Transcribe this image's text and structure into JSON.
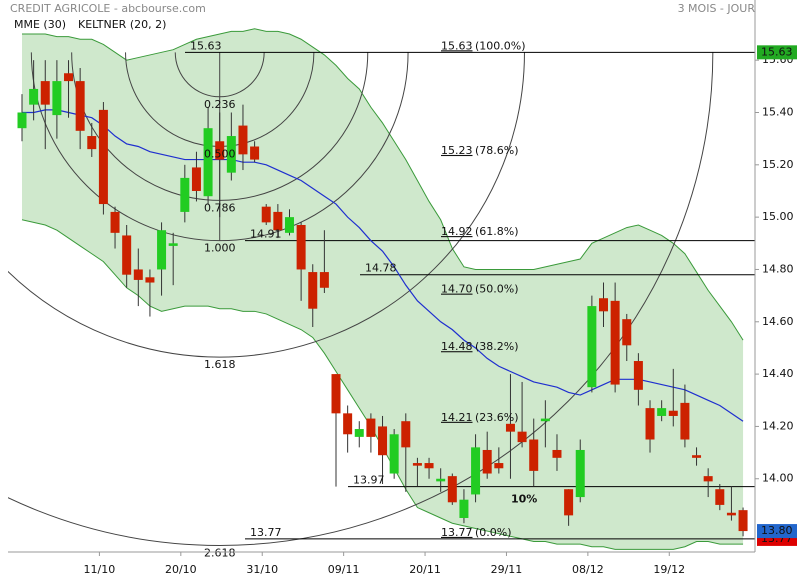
{
  "chart_data": {
    "type": "candlestick",
    "title": "CREDIT AGRICOLE - abcbourse.com",
    "subtitle": "3 MOIS - JOUR",
    "categories": [
      null,
      null,
      null,
      null,
      null,
      null,
      null,
      "11/10",
      null,
      null,
      null,
      null,
      null,
      null,
      "20/10",
      null,
      null,
      null,
      null,
      null,
      null,
      "31/10",
      null,
      null,
      null,
      null,
      null,
      null,
      "09/11",
      null,
      null,
      null,
      null,
      null,
      null,
      "20/11",
      null,
      null,
      null,
      null,
      null,
      null,
      "29/11",
      null,
      null,
      null,
      null,
      null,
      null,
      "08/12",
      null,
      null,
      null,
      null,
      null,
      null,
      "19/12",
      null,
      null,
      null,
      null,
      null,
      null
    ],
    "open": [
      15.34,
      15.43,
      15.52,
      15.39,
      15.55,
      15.52,
      15.31,
      15.41,
      15.02,
      14.93,
      14.8,
      14.77,
      14.8,
      14.89,
      15.02,
      15.19,
      15.08,
      15.29,
      15.17,
      15.35,
      15.27,
      15.04,
      15.02,
      14.94,
      14.97,
      14.79,
      14.79,
      14.4,
      14.25,
      14.16,
      14.23,
      14.2,
      14.02,
      14.22,
      14.06,
      14.06,
      13.99,
      14.01,
      13.85,
      13.94,
      14.11,
      14.06,
      14.21,
      14.18,
      14.15,
      14.22,
      14.11,
      13.96,
      13.93,
      14.35,
      14.69,
      14.68,
      14.61,
      14.45,
      14.27,
      14.24,
      14.26,
      14.29,
      14.09,
      14.01,
      13.96,
      13.87,
      13.88
    ],
    "high": [
      15.47,
      15.6,
      15.6,
      15.6,
      15.6,
      15.57,
      15.36,
      15.44,
      15.04,
      14.97,
      14.88,
      14.8,
      14.98,
      14.94,
      15.2,
      15.25,
      15.42,
      15.4,
      15.4,
      15.43,
      15.29,
      15.05,
      15.05,
      15.03,
      14.98,
      14.82,
      14.95,
      14.4,
      14.28,
      14.22,
      14.25,
      14.24,
      14.19,
      14.25,
      14.08,
      14.08,
      14.04,
      14.02,
      13.96,
      14.17,
      14.18,
      14.12,
      14.4,
      14.37,
      14.23,
      14.3,
      14.17,
      13.96,
      14.15,
      14.7,
      14.75,
      14.75,
      14.63,
      14.48,
      14.3,
      14.3,
      14.42,
      14.36,
      14.12,
      14.04,
      13.98,
      13.97,
      13.89
    ],
    "low": [
      15.29,
      15.37,
      15.26,
      15.3,
      15.38,
      15.26,
      15.23,
      15.01,
      14.88,
      14.73,
      14.66,
      14.62,
      14.7,
      14.74,
      14.98,
      15.06,
      15.05,
      15.0,
      15.14,
      15.18,
      15.21,
      14.97,
      14.92,
      14.93,
      14.68,
      14.58,
      14.71,
      13.97,
      14.1,
      14.12,
      14.1,
      13.98,
      14.0,
      13.95,
      13.97,
      14.0,
      13.95,
      13.9,
      13.83,
      13.91,
      14.0,
      14.02,
      14.0,
      14.12,
      13.97,
      14.12,
      14.03,
      13.82,
      13.91,
      14.33,
      14.58,
      14.33,
      14.45,
      14.28,
      14.1,
      14.22,
      14.2,
      14.12,
      14.05,
      13.93,
      13.88,
      13.84,
      13.78
    ],
    "close": [
      15.4,
      15.49,
      15.43,
      15.52,
      15.52,
      15.33,
      15.26,
      15.05,
      14.94,
      14.78,
      14.76,
      14.75,
      14.95,
      14.9,
      15.15,
      15.1,
      15.34,
      15.22,
      15.31,
      15.24,
      15.22,
      14.98,
      14.95,
      15.0,
      14.8,
      14.65,
      14.73,
      14.25,
      14.17,
      14.19,
      14.16,
      14.09,
      14.17,
      14.12,
      14.05,
      14.04,
      14.0,
      13.91,
      13.92,
      14.12,
      14.02,
      14.04,
      14.18,
      14.14,
      14.03,
      14.23,
      14.08,
      13.86,
      14.11,
      14.66,
      14.64,
      14.36,
      14.51,
      14.34,
      14.15,
      14.27,
      14.24,
      14.15,
      14.08,
      13.99,
      13.9,
      13.86,
      13.8
    ],
    "up_color": "#22cc22",
    "down_color": "#cc2200",
    "ema": {
      "name": "MME (30)",
      "color": "#1f2fcf",
      "values": [
        15.4,
        15.4,
        15.41,
        15.41,
        15.4,
        15.39,
        15.38,
        15.35,
        15.31,
        15.28,
        15.27,
        15.25,
        15.24,
        15.23,
        15.22,
        15.22,
        15.22,
        15.22,
        15.22,
        15.21,
        15.21,
        15.2,
        15.18,
        15.16,
        15.14,
        15.11,
        15.08,
        15.05,
        15.0,
        14.96,
        14.91,
        14.87,
        14.81,
        14.74,
        14.68,
        14.64,
        14.6,
        14.57,
        14.53,
        14.5,
        14.46,
        14.43,
        14.41,
        14.39,
        14.37,
        14.36,
        14.35,
        14.33,
        14.32,
        14.34,
        14.36,
        14.38,
        14.38,
        14.38,
        14.37,
        14.36,
        14.35,
        14.34,
        14.32,
        14.3,
        14.28,
        14.25,
        14.22
      ]
    },
    "keltner": {
      "name": "KELTNER (20, 2)",
      "color": "#3a9a3a",
      "fill": "#cfe8cc",
      "upper": [
        15.7,
        15.7,
        15.7,
        15.69,
        15.69,
        15.68,
        15.68,
        15.66,
        15.63,
        15.6,
        15.61,
        15.62,
        15.63,
        15.64,
        15.66,
        15.68,
        15.69,
        15.7,
        15.71,
        15.71,
        15.72,
        15.71,
        15.71,
        15.7,
        15.68,
        15.65,
        15.62,
        15.58,
        15.53,
        15.49,
        15.42,
        15.36,
        15.29,
        15.22,
        15.14,
        15.06,
        14.99,
        14.88,
        14.81,
        14.8,
        14.8,
        14.8,
        14.8,
        14.8,
        14.8,
        14.81,
        14.82,
        14.83,
        14.84,
        14.9,
        14.92,
        14.94,
        14.96,
        14.97,
        14.95,
        14.93,
        14.9,
        14.86,
        14.79,
        14.72,
        14.66,
        14.6,
        14.53
      ],
      "lower": [
        14.99,
        14.98,
        14.97,
        14.95,
        14.92,
        14.89,
        14.86,
        14.83,
        14.78,
        14.73,
        14.7,
        14.66,
        14.64,
        14.65,
        14.66,
        14.66,
        14.66,
        14.65,
        14.65,
        14.64,
        14.64,
        14.63,
        14.61,
        14.59,
        14.57,
        14.54,
        14.48,
        14.41,
        14.34,
        14.27,
        14.2,
        14.12,
        14.04,
        13.96,
        13.89,
        13.87,
        13.85,
        13.83,
        13.82,
        13.81,
        13.8,
        13.79,
        13.78,
        13.77,
        13.76,
        13.76,
        13.75,
        13.75,
        13.75,
        13.74,
        13.74,
        13.73,
        13.73,
        13.73,
        13.73,
        13.73,
        13.73,
        13.74,
        13.76,
        13.76,
        13.75,
        13.75,
        13.75
      ]
    },
    "fibonacci": {
      "values": [
        15.63,
        15.23,
        14.92,
        14.7,
        14.48,
        14.21,
        13.77
      ],
      "value_labels": [
        "15.63",
        "15.23",
        "14.92",
        "14.70",
        "14.48",
        "14.21",
        "13.77"
      ],
      "percents": [
        "(100.0%)",
        "(78.6%)",
        "(61.8%)",
        "(50.0%)",
        "(38.2%)",
        "(23.6%)",
        "(0.0%)"
      ]
    },
    "lines": {
      "values": [
        15.63,
        14.91,
        14.78,
        13.97,
        13.77
      ]
    },
    "arcs": {
      "ratios": [
        0.236,
        0.5,
        0.786,
        1,
        1.618,
        2.618
      ],
      "value_labels": [
        "0.236",
        "0.500",
        "0.786",
        "1.000",
        "1.618",
        "2.618"
      ]
    },
    "annotation": "10%",
    "price_tags": [
      {
        "value": 15.63,
        "color": "#22aa22"
      },
      {
        "value": 13.77,
        "color": "#dd0000"
      },
      {
        "value": 13.8,
        "label": "13.80",
        "color": "#2266cc"
      }
    ],
    "ylim": [
      13.72,
      15.83
    ],
    "yticks": [
      {
        "value": 14,
        "label": "14.00"
      },
      {
        "value": 14.2,
        "label": "14.20"
      },
      {
        "value": 14.4,
        "label": "14.40"
      },
      {
        "value": 14.6,
        "label": "14.60"
      },
      {
        "value": 14.8,
        "label": "14.80"
      },
      {
        "value": 15,
        "label": "15.00"
      },
      {
        "value": 15.2,
        "label": "15.20"
      },
      {
        "value": 15.4,
        "label": "15.40"
      },
      {
        "value": 15.6,
        "label": "15.60"
      }
    ],
    "grid": false
  }
}
